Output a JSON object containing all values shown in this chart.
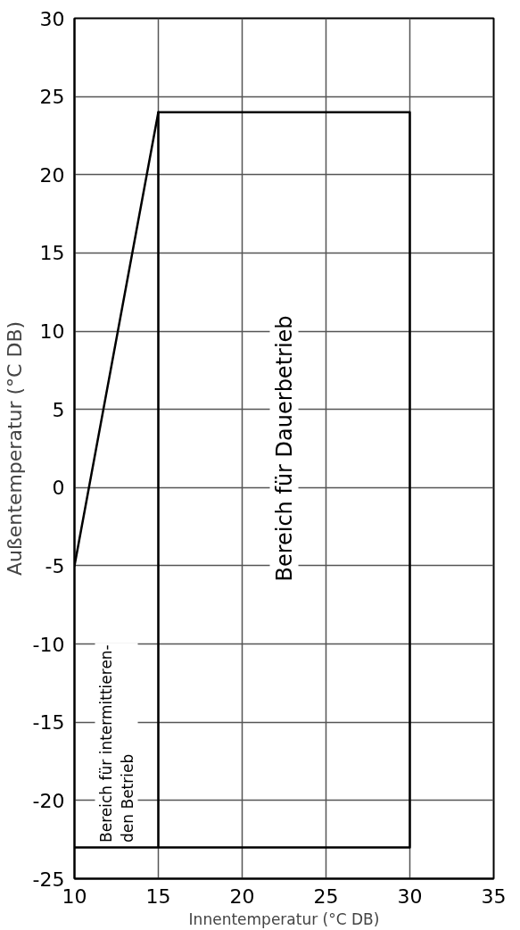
{
  "chart_data": {
    "type": "line",
    "xlabel": "Innentemperatur (°C DB)",
    "ylabel": "Außentemperatur (°C DB)",
    "xlim": [
      10,
      35
    ],
    "ylim": [
      -25,
      30
    ],
    "xticks": [
      10,
      15,
      20,
      25,
      30,
      35
    ],
    "yticks": [
      -25,
      -20,
      -15,
      -10,
      -5,
      0,
      5,
      10,
      15,
      20,
      25,
      30
    ],
    "grid": true,
    "marker": "none",
    "line_style": "solid",
    "series": [
      {
        "color": "#000000",
        "x": [
          10,
          15
        ],
        "values": [
          -5,
          24
        ]
      },
      {
        "color": "#000000",
        "x": [
          10,
          30,
          30,
          15,
          15
        ],
        "values": [
          -23,
          -23,
          24,
          24,
          -23
        ]
      }
    ],
    "annotations": [
      "Bereich für intermittieren-\nden Betrieb",
      "Bereich für Dauerbetrieb"
    ]
  }
}
